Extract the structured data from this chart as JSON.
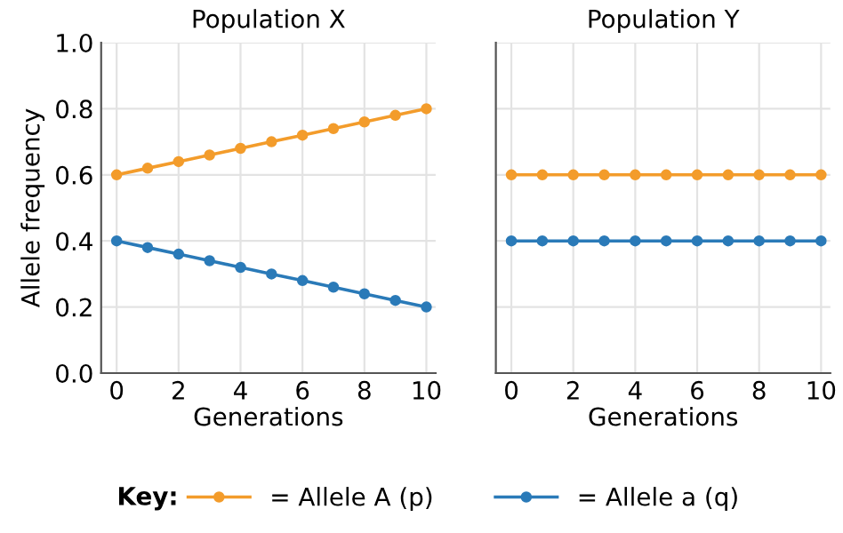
{
  "chart_data": [
    {
      "type": "line",
      "title": "Population X",
      "xlabel": "Generations",
      "ylabel": "Allele frequency",
      "x": [
        0,
        1,
        2,
        3,
        4,
        5,
        6,
        7,
        8,
        9,
        10
      ],
      "xlim": [
        -0.5,
        10.3
      ],
      "xticks": [
        0,
        2,
        4,
        6,
        8,
        10
      ],
      "ylim": [
        0,
        1
      ],
      "yticks": [
        {
          "value": 0,
          "label": "0.0"
        },
        0.2,
        0.4,
        0.6,
        0.8,
        {
          "value": 1,
          "label": "1.0"
        }
      ],
      "grid": true,
      "marker": "circle",
      "legend": "bottom",
      "legend_title": "Key:",
      "series": [
        {
          "name": "= Allele A (p)",
          "color": "#f39c2b",
          "values": [
            0.6,
            0.62,
            0.64,
            0.66,
            0.68,
            0.7,
            0.72,
            0.74,
            0.76,
            0.78,
            0.8
          ]
        },
        {
          "name": "= Allele a (q)",
          "color": "#2a7ab8",
          "values": [
            0.4,
            0.38,
            0.36,
            0.34,
            0.32,
            0.3,
            0.28,
            0.26,
            0.24,
            0.22,
            0.2
          ]
        }
      ]
    },
    {
      "type": "line",
      "title": "Population Y",
      "xlabel": "Generations",
      "x": [
        0,
        1,
        2,
        3,
        4,
        5,
        6,
        7,
        8,
        9,
        10
      ],
      "xlim": [
        -0.5,
        10.3
      ],
      "xticks": [
        0,
        2,
        4,
        6,
        8,
        10
      ],
      "ylim": [
        0,
        1
      ],
      "yticks": [
        {
          "value": 0,
          "label": null
        },
        {
          "value": 0.2,
          "label": null
        },
        {
          "value": 0.4,
          "label": null
        },
        {
          "value": 0.6,
          "label": null
        },
        {
          "value": 0.8,
          "label": null
        },
        {
          "value": 1,
          "label": null
        }
      ],
      "tick_labels": "x",
      "grid": true,
      "marker": "circle",
      "series": [
        {
          "color": "#f39c2b",
          "values": [
            0.6,
            0.6,
            0.6,
            0.6,
            0.6,
            0.6,
            0.6,
            0.6,
            0.6,
            0.6,
            0.6
          ]
        },
        {
          "color": "#2a7ab8",
          "values": [
            0.4,
            0.4,
            0.4,
            0.4,
            0.4,
            0.4,
            0.4,
            0.4,
            0.4,
            0.4,
            0.4
          ]
        }
      ]
    }
  ]
}
